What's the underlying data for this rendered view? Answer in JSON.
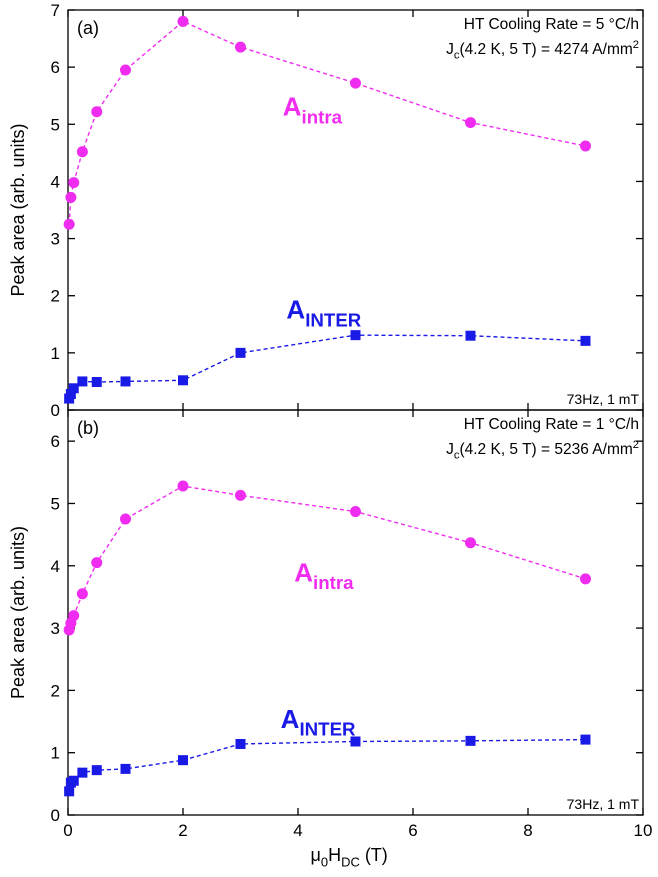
{
  "chart_data": [
    {
      "type": "line",
      "panel_label": "(a)",
      "annotations": [
        [
          "HT Cooling Rate = 5 °C/h"
        ],
        [
          "J",
          "c",
          "(4.2 K, 5 T) = 4274 A/mm",
          "2"
        ]
      ],
      "footnote": "73Hz, 1 mT",
      "ylabel": "Peak area (arb. units)",
      "x": [
        0.02,
        0.05,
        0.1,
        0.25,
        0.5,
        1,
        2,
        3,
        5,
        7,
        9
      ],
      "xlim": [
        0,
        10
      ],
      "xticks": [
        0,
        2,
        4,
        6,
        8,
        10
      ],
      "ylim": [
        0,
        7
      ],
      "yticks": [
        0,
        1,
        2,
        3,
        4,
        5,
        6,
        7
      ],
      "series": [
        {
          "name": [
            "A",
            "intra"
          ],
          "color": "#f02cf0",
          "marker": "circle",
          "values": [
            3.25,
            3.72,
            3.98,
            4.52,
            5.22,
            5.95,
            6.8,
            6.35,
            5.72,
            5.03,
            4.62
          ]
        },
        {
          "name": [
            "A",
            "INTER"
          ],
          "color": "#1a1ae6",
          "marker": "square",
          "values": [
            0.2,
            0.28,
            0.38,
            0.5,
            0.49,
            0.5,
            0.52,
            1.0,
            1.31,
            1.3,
            1.21
          ]
        }
      ]
    },
    {
      "type": "line",
      "panel_label": "(b)",
      "annotations": [
        [
          "HT Cooling Rate = 1 °C/h"
        ],
        [
          "J",
          "c",
          "(4.2 K, 5 T) = 5236 A/mm",
          "2"
        ]
      ],
      "footnote": "73Hz, 1 mT",
      "ylabel": "Peak area (arb. units)",
      "xlabel": [
        "μ",
        "0",
        "H",
        "DC",
        " (T)"
      ],
      "x": [
        0.02,
        0.05,
        0.1,
        0.25,
        0.5,
        1,
        2,
        3,
        5,
        7,
        9
      ],
      "xlim": [
        0,
        10
      ],
      "xticks": [
        0,
        2,
        4,
        6,
        8,
        10
      ],
      "ylim": [
        0,
        6.5
      ],
      "yticks": [
        0,
        1,
        2,
        3,
        4,
        5,
        6
      ],
      "series": [
        {
          "name": [
            "A",
            "intra"
          ],
          "color": "#f02cf0",
          "marker": "circle",
          "values": [
            2.97,
            3.08,
            3.2,
            3.55,
            4.05,
            4.75,
            5.28,
            5.13,
            4.87,
            4.37,
            3.79
          ]
        },
        {
          "name": [
            "A",
            "INTER"
          ],
          "color": "#1a1ae6",
          "marker": "square",
          "values": [
            0.38,
            0.52,
            0.55,
            0.68,
            0.72,
            0.74,
            0.88,
            1.14,
            1.18,
            1.19,
            1.21
          ]
        }
      ]
    }
  ]
}
